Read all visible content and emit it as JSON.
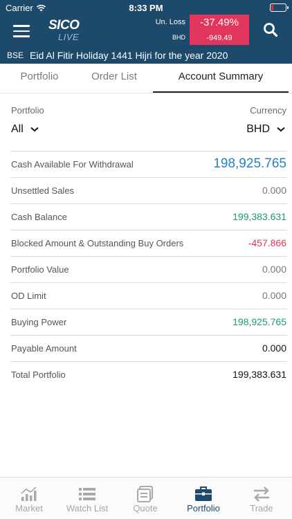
{
  "status_bar": {
    "carrier": "Carrier",
    "time": "8:33 PM"
  },
  "header": {
    "logo_top": "SICO",
    "logo_bottom": "LIVE",
    "unrealized_label": "Un. Loss",
    "currency_label": "BHD",
    "unrealized_pct": "-37.49%",
    "unrealized_value": "-949.49"
  },
  "ticker": {
    "exchange": "BSE",
    "message": "Eid Al Fitir Holiday 1441 Hijri for the year 2020"
  },
  "tabs": [
    {
      "label": "Portfolio"
    },
    {
      "label": "Order List"
    },
    {
      "label": "Account Summary"
    }
  ],
  "filters": {
    "portfolio_label": "Portfolio",
    "portfolio_value": "All",
    "currency_label": "Currency",
    "currency_value": "BHD"
  },
  "summary": [
    {
      "label": "Cash Available For Withdrawal",
      "value": "198,925.765",
      "color": "#2481c2"
    },
    {
      "label": "Unsettled Sales",
      "value": "0.000",
      "color": "#777777"
    },
    {
      "label": "Cash Balance",
      "value": "199,383.631",
      "color": "#1a9a73"
    },
    {
      "label": "Blocked Amount & Outstanding Buy Orders",
      "value": "-457.866",
      "color": "#e0355a"
    },
    {
      "label": "Portfolio Value",
      "value": "0.000",
      "color": "#777777"
    },
    {
      "label": "OD Limit",
      "value": "0.000",
      "color": "#777777"
    },
    {
      "label": "Buying Power",
      "value": "198,925.765",
      "color": "#1a9a73"
    },
    {
      "label": "Payable Amount",
      "value": "0.000",
      "color": "#111111"
    },
    {
      "label": "Total Portfolio",
      "value": "199,383.631",
      "color": "#111111"
    }
  ],
  "bottom_nav": [
    {
      "label": "Market",
      "icon": "chart-icon"
    },
    {
      "label": "Watch List",
      "icon": "list-icon"
    },
    {
      "label": "Quote",
      "icon": "quote-icon"
    },
    {
      "label": "Portfolio",
      "icon": "briefcase-icon",
      "active": true
    },
    {
      "label": "Trade",
      "icon": "transfer-icon"
    }
  ],
  "colors": {
    "header_bg": "#1d4a6b",
    "loss_badge": "#e2355b",
    "active_nav": "#1d4a6b"
  }
}
